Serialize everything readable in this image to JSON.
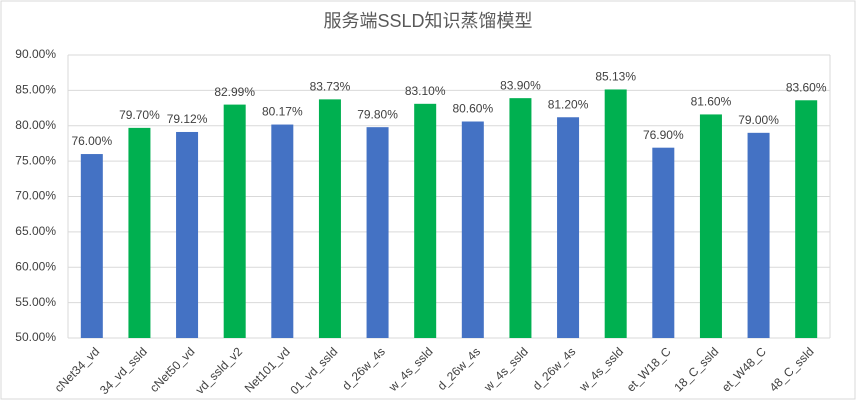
{
  "chart_data": {
    "type": "bar",
    "title": "服务端SSLD知识蒸馏模型",
    "categories": [
      "cNet34_vd",
      "34_vd_ssld",
      "cNet50_vd",
      "vd_ssld_v2",
      "Net101_vd",
      "01_vd_ssld",
      "d_26w_4s",
      "w_4s_ssld",
      "d_26w_4s",
      "w_4s_ssld",
      "d_26w_4s",
      "w_4s_ssld",
      "et_W18_C",
      "18_C_ssld",
      "et_W48_C",
      "48_C_ssld"
    ],
    "values": [
      76.0,
      79.7,
      79.12,
      82.99,
      80.17,
      83.73,
      79.8,
      83.1,
      80.6,
      83.9,
      81.2,
      85.13,
      76.9,
      81.6,
      79.0,
      83.6
    ],
    "value_labels": [
      "76.00%",
      "79.70%",
      "79.12%",
      "82.99%",
      "80.17%",
      "83.73%",
      "79.80%",
      "83.10%",
      "80.60%",
      "83.90%",
      "81.20%",
      "85.13%",
      "76.90%",
      "81.60%",
      "79.00%",
      "83.60%"
    ],
    "colors": [
      "#4472c4",
      "#00b050",
      "#4472c4",
      "#00b050",
      "#4472c4",
      "#00b050",
      "#4472c4",
      "#00b050",
      "#4472c4",
      "#00b050",
      "#4472c4",
      "#00b050",
      "#4472c4",
      "#00b050",
      "#4472c4",
      "#00b050"
    ],
    "ylim": [
      50,
      90
    ],
    "yticks": [
      {
        "value": 50,
        "label": "50.00%"
      },
      {
        "value": 55,
        "label": "55.00%"
      },
      {
        "value": 60,
        "label": "60.00%"
      },
      {
        "value": 65,
        "label": "65.00%"
      },
      {
        "value": 70,
        "label": "70.00%"
      },
      {
        "value": 75,
        "label": "75.00%"
      },
      {
        "value": 80,
        "label": "80.00%"
      },
      {
        "value": 85,
        "label": "85.00%"
      },
      {
        "value": 90,
        "label": "90.00%"
      }
    ],
    "grid": true
  }
}
